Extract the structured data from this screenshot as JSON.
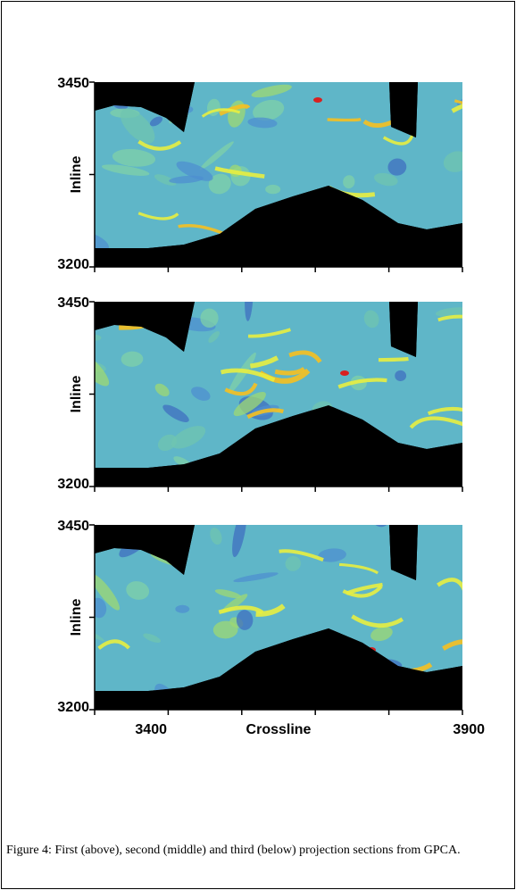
{
  "figure": {
    "panels": [
      {
        "y_top": "3450",
        "y_bottom": "3200",
        "ylabel": "Inline"
      },
      {
        "y_top": "3450",
        "y_bottom": "3200",
        "ylabel": "Inline"
      },
      {
        "y_top": "3450",
        "y_bottom": "3200",
        "ylabel": "Inline"
      }
    ],
    "x_axis": {
      "left": "3400",
      "center": "Crossline",
      "right": "3900"
    },
    "caption": "Figure 4: First (above), second (middle) and third (below) projection sections from GPCA."
  }
}
